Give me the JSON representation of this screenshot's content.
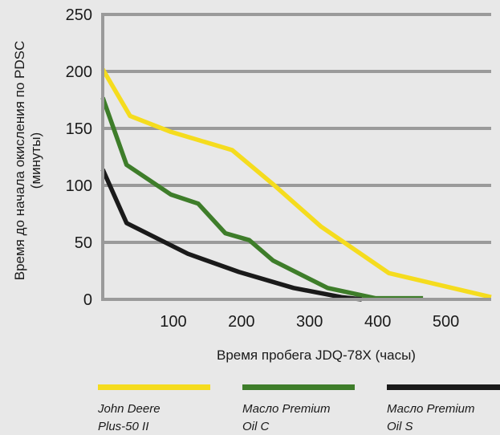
{
  "chart_data": {
    "type": "line",
    "xlabel": "Время пробега JDQ-78X (часы)",
    "ylabel": [
      "Время до начала окисления по PDSC",
      "(минуты)"
    ],
    "xlim": [
      0,
      570
    ],
    "ylim": [
      0,
      250
    ],
    "x_ticks": [
      100,
      200,
      300,
      400,
      500
    ],
    "y_ticks": [
      0,
      50,
      100,
      150,
      200,
      250
    ],
    "grid": "horizontal",
    "legend_position": "bottom",
    "series": [
      {
        "name": [
          "John Deere",
          "Plus-50 II"
        ],
        "color": "#f5dc1e",
        "points": [
          [
            0,
            202
          ],
          [
            40,
            161
          ],
          [
            100,
            147
          ],
          [
            190,
            131
          ],
          [
            250,
            101
          ],
          [
            320,
            64
          ],
          [
            420,
            23
          ],
          [
            570,
            2
          ]
        ]
      },
      {
        "name": [
          "Масло Premium",
          "Oil C"
        ],
        "color": "#3e7d2a",
        "points": [
          [
            0,
            177
          ],
          [
            35,
            118
          ],
          [
            100,
            92
          ],
          [
            140,
            84
          ],
          [
            180,
            58
          ],
          [
            215,
            52
          ],
          [
            250,
            34
          ],
          [
            330,
            10
          ],
          [
            400,
            1
          ],
          [
            470,
            1
          ]
        ]
      },
      {
        "name": [
          "Масло Premium",
          "Oil S"
        ],
        "color": "#1a1a1a",
        "points": [
          [
            0,
            114
          ],
          [
            35,
            67
          ],
          [
            125,
            40
          ],
          [
            200,
            24
          ],
          [
            280,
            10
          ],
          [
            350,
            2
          ],
          [
            380,
            0
          ]
        ]
      }
    ]
  }
}
